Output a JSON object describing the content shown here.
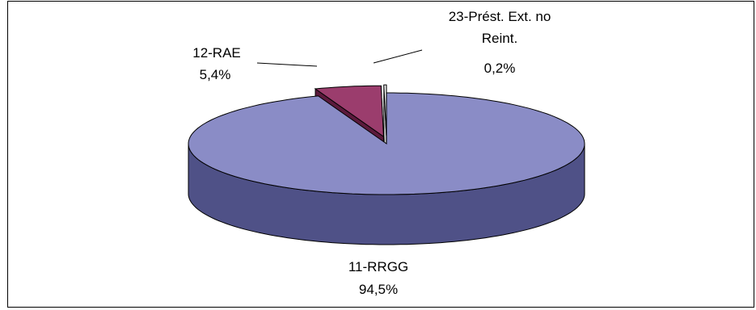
{
  "chart_data": {
    "type": "pie",
    "style": "3d-exploded",
    "categories": [
      "11-RRGG",
      "12-RAE",
      "23-Prést. Ext. no Reint."
    ],
    "values": [
      94.5,
      5.4,
      0.2
    ],
    "value_labels": [
      "94,5%",
      "5,4%",
      "0,2%"
    ],
    "label_lines": [
      [
        "11-RRGG"
      ],
      [
        "12-RAE"
      ],
      [
        "23-Prést. Ext. no",
        "Reint."
      ]
    ],
    "colors": {
      "11-RRGG": {
        "top": "#8a8cc6",
        "side": "#4f5187"
      },
      "12-RAE": {
        "top": "#9b3d6d",
        "side": "#5b1a3c"
      },
      "23-Prést. Ext. no Reint.": {
        "top": "#ffffff",
        "side": "#d9d9d9"
      }
    }
  }
}
